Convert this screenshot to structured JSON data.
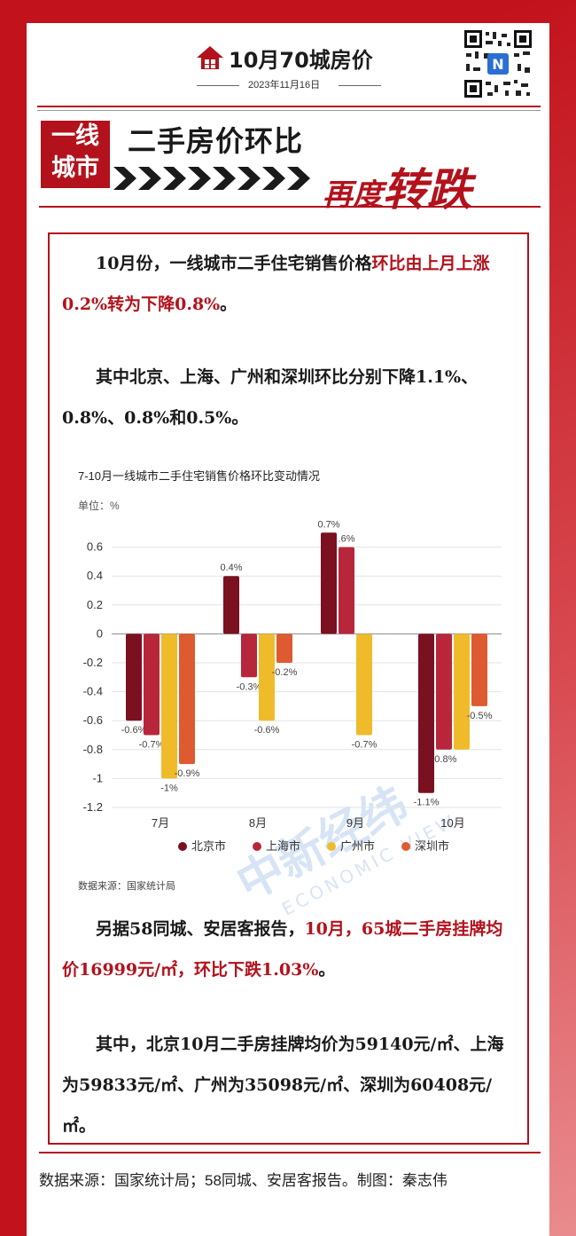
{
  "header": {
    "title": "10月70城房价",
    "date": "2023年11月16日",
    "icon": "house-icon",
    "qr": "qr-code"
  },
  "banner": {
    "tag_line1": "一线",
    "tag_line2": "城市",
    "title_main": "二手房价环比",
    "title_accent_prefix": "再度",
    "title_accent": "转跌"
  },
  "paragraphs": {
    "p1_plain": "10月份，一线城市二手住宅销售价格",
    "p1_highlight": "环比由上月上涨0.2%转为下降0.8%",
    "p1_end": "。",
    "p2": "其中北京、上海、广州和深圳环比分别下降1.1%、0.8%、0.8%和0.5%。",
    "p3_plain": "另据58同城、安居客报告，",
    "p3_highlight": "10月，65城二手房挂牌均价16999元/㎡，环比下跌1.03%",
    "p3_end": "。",
    "p4": "其中，北京10月二手房挂牌均价为59140元/㎡、上海为59833元/㎡、广州为35098元/㎡、深圳为60408元/㎡。"
  },
  "chart_data": {
    "type": "bar",
    "title": "7-10月一线城市二手住宅销售价格环比变动情况",
    "unit_label": "单位：%",
    "categories": [
      "7月",
      "8月",
      "9月",
      "10月"
    ],
    "series": [
      {
        "name": "北京市",
        "color": "#7a1020",
        "values": [
          -0.6,
          0.4,
          0.7,
          -1.1
        ]
      },
      {
        "name": "上海市",
        "color": "#b8263c",
        "values": [
          -0.7,
          -0.3,
          0.6,
          -0.8
        ]
      },
      {
        "name": "广州市",
        "color": "#f0bb2a",
        "values": [
          -1.0,
          -0.6,
          -0.7,
          -0.8
        ]
      },
      {
        "name": "深圳市",
        "color": "#de5a30",
        "values": [
          -0.9,
          -0.2,
          0,
          -0.5
        ]
      }
    ],
    "data_labels": [
      [
        [
          "-0.6%",
          "-0.7%",
          "-1%",
          "-0.9%"
        ],
        [
          "0.4%",
          "-0.3%",
          "-0.6%",
          "-0.2%"
        ],
        [
          "0.7%",
          ".6%",
          "-0.7%",
          ""
        ],
        [
          "-1.1%",
          "-0.8%",
          "",
          "-0.5%"
        ]
      ]
    ],
    "yticks": [
      "0.6",
      "0.4",
      "0.2",
      "0",
      "-0.2",
      "-0.4",
      "-0.6",
      "-0.8",
      "-1",
      "-1.2"
    ],
    "ylim": [
      -1.2,
      0.7
    ],
    "grid": true,
    "legend_position": "bottom",
    "source": "数据来源：国家统计局",
    "watermark_cn": "中新经纬",
    "watermark_en": "ECONOMIC VIEW"
  },
  "footer": {
    "text": "数据来源：国家统计局；58同城、安居客报告。制图：秦志伟"
  }
}
